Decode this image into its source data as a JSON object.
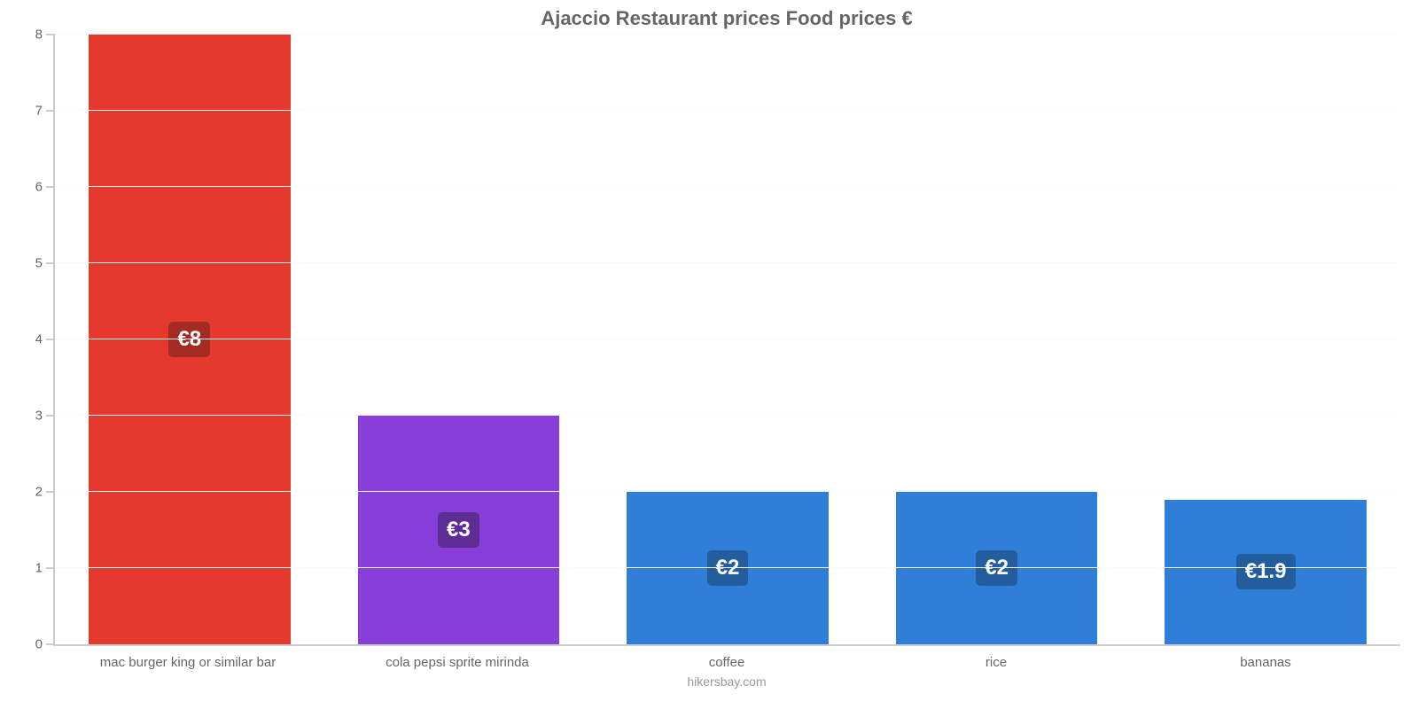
{
  "chart": {
    "type": "bar",
    "title": "Ajaccio Restaurant prices Food prices €",
    "title_fontsize": 22,
    "title_color": "#666666",
    "source": "hikersbay.com",
    "background_color": "#ffffff",
    "grid_color": "#fafafa",
    "axis_color": "#cccccc",
    "tick_label_color": "#666666",
    "ymin": 0,
    "ymax": 8,
    "ytick_step": 1,
    "yticks": [
      0,
      1,
      2,
      3,
      4,
      5,
      6,
      7,
      8
    ],
    "bar_width_pct": 75,
    "value_label_fontsize": 24,
    "categories": [
      {
        "label": "mac burger king or similar bar",
        "value": 8,
        "display": "€8",
        "bar_color": "#e5392e",
        "badge_color": "#a42b22"
      },
      {
        "label": "cola pepsi sprite mirinda",
        "value": 3,
        "display": "€3",
        "bar_color": "#883ed8",
        "badge_color": "#5d2c94"
      },
      {
        "label": "coffee",
        "value": 2,
        "display": "€2",
        "bar_color": "#2f7ed8",
        "badge_color": "#235d9e"
      },
      {
        "label": "rice",
        "value": 2,
        "display": "€2",
        "bar_color": "#2f7ed8",
        "badge_color": "#235d9e"
      },
      {
        "label": "bananas",
        "value": 1.9,
        "display": "€1.9",
        "bar_color": "#2f7ed8",
        "badge_color": "#235d9e"
      }
    ]
  }
}
